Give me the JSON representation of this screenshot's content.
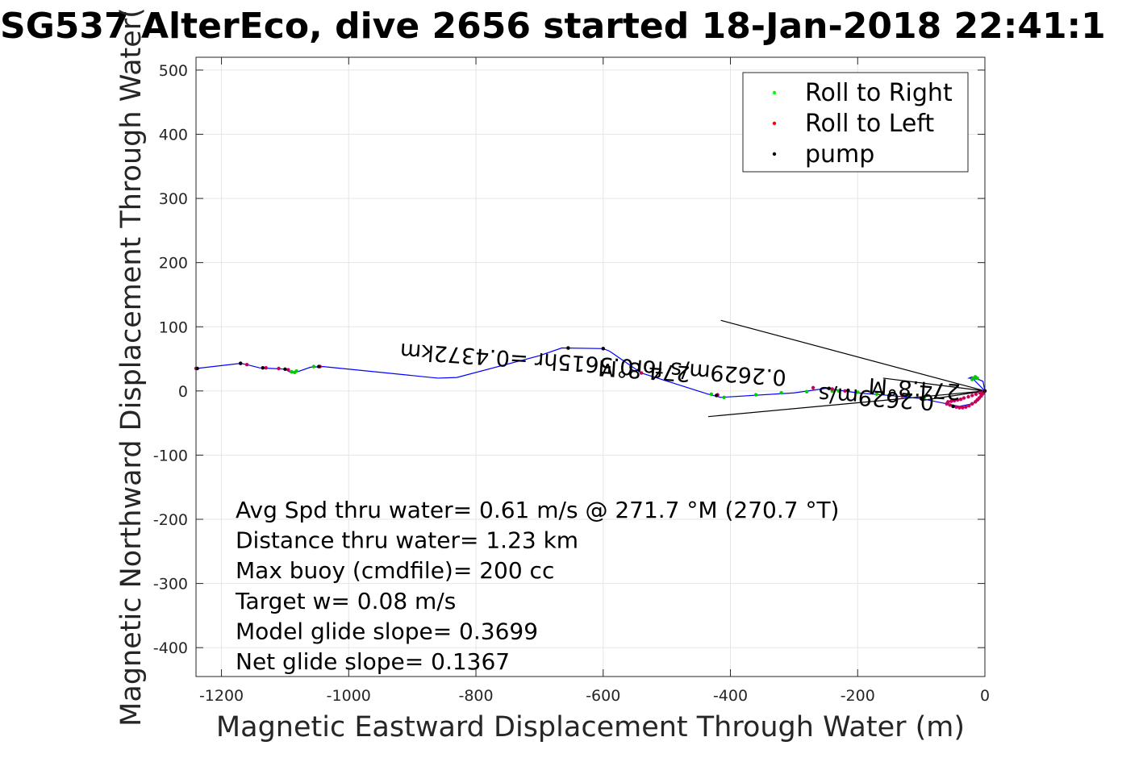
{
  "chart_data": {
    "type": "line",
    "title": "SG537 AlterEco, dive 2656 started 18-Jan-2018 22:41:1",
    "xlabel": "Magnetic Eastward Displacement Through Water (m)",
    "ylabel": "Magnetic Northward Displacement Through Water(",
    "xlim": [
      -1240,
      0
    ],
    "ylim": [
      -445,
      520
    ],
    "xticks": [
      -1200,
      -1000,
      -800,
      -600,
      -400,
      -200,
      0
    ],
    "yticks": [
      -400,
      -300,
      -200,
      -100,
      0,
      100,
      200,
      300,
      400,
      500
    ],
    "grid": true,
    "legend_position": "top-right",
    "legend": [
      {
        "name": "Roll to Right",
        "color": "#00ff00"
      },
      {
        "name": "Roll to Left",
        "color": "#ff0000"
      },
      {
        "name": "pump",
        "color": "#000000"
      }
    ],
    "track_color": "#0000ff",
    "track": {
      "x": [
        -1240,
        -1170,
        -1160,
        -1140,
        -1120,
        -1100,
        -1090,
        -1080,
        -1060,
        -1040,
        -860,
        -830,
        -700,
        -665,
        -600,
        -590,
        -540,
        -435,
        -415,
        -300,
        -250,
        -200,
        -150,
        -100,
        -70,
        -40,
        -20,
        -10,
        -5,
        0,
        -15,
        -20,
        -25,
        -10,
        -3,
        0
      ],
      "y": [
        35,
        43,
        41,
        36,
        35,
        34,
        28,
        30,
        37,
        38,
        20,
        21,
        55,
        67,
        66,
        62,
        28,
        -5,
        -10,
        -3,
        4,
        -3,
        -7,
        -12,
        -18,
        -24,
        -20,
        -15,
        -8,
        0,
        15,
        22,
        20,
        18,
        15,
        0
      ]
    },
    "series": [
      {
        "name": "Roll to Right",
        "color": "#00cc00",
        "x": [
          -1090,
          -1085,
          -1082,
          -1055,
          -430,
          -410,
          -360,
          -320,
          -280,
          -240,
          -230,
          -200,
          -170,
          -150,
          -120,
          -95,
          -20,
          -18,
          -15,
          -12
        ],
        "y": [
          30,
          29,
          31,
          38,
          -5,
          -10,
          -6,
          -3,
          -1,
          0,
          0,
          -2,
          -5,
          -6,
          -8,
          -10,
          18,
          20,
          22,
          20
        ]
      },
      {
        "name": "Roll to Left",
        "color": "#c8005a",
        "x": [
          -1240,
          -1170,
          -1160,
          -1130,
          -1110,
          -1095,
          -1045,
          -655,
          -600,
          -540,
          -420,
          -270,
          -240,
          -220,
          -130,
          -60,
          -55,
          -50,
          -45,
          -40,
          -35,
          -30,
          -25,
          -20,
          -15,
          -12,
          -9,
          -6,
          -4,
          -2,
          0,
          -3,
          -8,
          -14,
          -20,
          -26,
          -33,
          -38,
          -43,
          -48,
          -53,
          -58
        ],
        "y": [
          35,
          43,
          41,
          36,
          35,
          33,
          38,
          67,
          66,
          28,
          -6,
          5,
          3,
          0,
          -8,
          -20,
          -22,
          -24,
          -25,
          -26,
          -26,
          -25,
          -23,
          -20,
          -17,
          -14,
          -11,
          -8,
          -5,
          -3,
          0,
          -1,
          -3,
          -5,
          -7,
          -9,
          -11,
          -13,
          -14,
          -15,
          -16,
          -17
        ]
      },
      {
        "name": "pump",
        "color": "#000000",
        "x": [
          -1238,
          -1170,
          -1135,
          -1100,
          -1047,
          -655,
          -600,
          -422,
          -245,
          -215,
          -150,
          -100,
          -50,
          0
        ],
        "y": [
          35,
          43,
          36,
          34,
          38,
          67,
          66,
          -7,
          4,
          1,
          -7,
          -12,
          -24,
          0
        ]
      }
    ],
    "current_lines": [
      {
        "x": [
          -415,
          0
        ],
        "y": [
          110,
          0
        ]
      },
      {
        "x": [
          -435,
          0
        ],
        "y": [
          -40,
          0
        ]
      },
      {
        "x": [
          -160,
          0
        ],
        "y": [
          20,
          0
        ]
      },
      {
        "x": [
          -100,
          0
        ],
        "y": [
          -15,
          0
        ]
      }
    ],
    "rotated_labels": [
      "0.2629m/s for0.5615hr =0.4372km",
      "274.8°M",
      "0.2629m/s",
      "274.8°M"
    ],
    "annotations": [
      "Avg Spd thru water=  0.61 m/s @ 271.7 °M (270.7 °T)",
      "Distance thru water=  1.23 km",
      "Max buoy (cmdfile)= 200 cc",
      "Target w= 0.08 m/s",
      "Model glide slope= 0.3699",
      "Net glide slope= 0.1367"
    ]
  }
}
